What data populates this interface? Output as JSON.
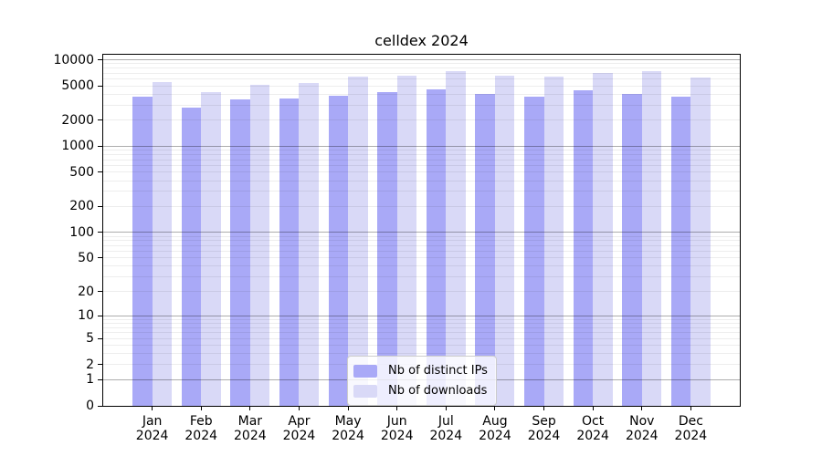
{
  "chart_data": {
    "type": "bar",
    "title": "celldex 2024",
    "y_scale": "log1p",
    "ylim": [
      0,
      10000
    ],
    "yticks": [
      10000,
      5000,
      2000,
      1000,
      500,
      200,
      100,
      50,
      20,
      10,
      5,
      2,
      1,
      0
    ],
    "grid": true,
    "grid_on_top_of_bars": true,
    "legend_position": "lower-center-inside",
    "categories": [
      {
        "month": "Jan",
        "year": "2024"
      },
      {
        "month": "Feb",
        "year": "2024"
      },
      {
        "month": "Mar",
        "year": "2024"
      },
      {
        "month": "Apr",
        "year": "2024"
      },
      {
        "month": "May",
        "year": "2024"
      },
      {
        "month": "Jun",
        "year": "2024"
      },
      {
        "month": "Jul",
        "year": "2024"
      },
      {
        "month": "Aug",
        "year": "2024"
      },
      {
        "month": "Sep",
        "year": "2024"
      },
      {
        "month": "Oct",
        "year": "2024"
      },
      {
        "month": "Nov",
        "year": "2024"
      },
      {
        "month": "Dec",
        "year": "2024"
      }
    ],
    "series": [
      {
        "name": "Nb of distinct IPs",
        "color": "#a9a9f7",
        "values": [
          3700,
          2800,
          3500,
          3550,
          3850,
          4200,
          4550,
          4000,
          3750,
          4400,
          4050,
          3700
        ]
      },
      {
        "name": "Nb of downloads",
        "color": "#d9d9f7",
        "values": [
          5500,
          4250,
          5100,
          5400,
          6350,
          6550,
          7350,
          6550,
          6400,
          7100,
          7450,
          6250
        ]
      }
    ]
  },
  "colors": {
    "axis": "#000000",
    "legend_border": "#cccccc",
    "grid_major": "rgba(0,0,0,0.32)",
    "grid_minor": "rgba(0,0,0,0.07)"
  }
}
